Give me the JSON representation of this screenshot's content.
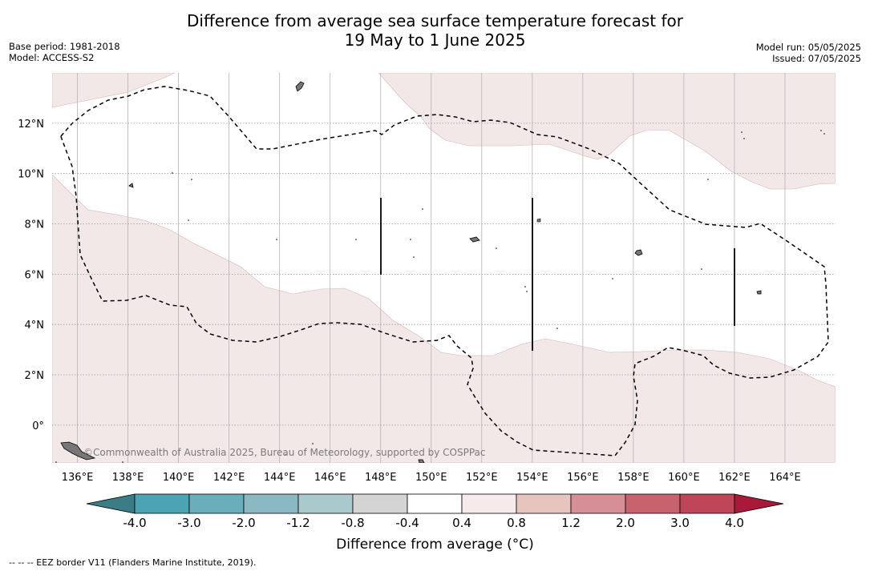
{
  "title_line1": "Difference from average sea surface temperature forecast for",
  "title_line2": "19 May to 1 June 2025",
  "base_period": "Base period: 1981-2018",
  "model": "Model: ACCESS-S2",
  "model_run": "Model run: 05/05/2025",
  "issued": "Issued: 07/05/2025",
  "copyright": "©Commonwealth of Australia 2025, Bureau of Meteorology, supported by COSPPac",
  "eez_note": "--  --  -- EEZ border V11 (Flanders Marine Institute, 2019).",
  "colorbar_title": "Difference from average (°C)",
  "colorbar_ticks": [
    "-4.0",
    "-3.0",
    "-2.0",
    "-1.2",
    "-0.8",
    "-0.4",
    "0.4",
    "0.8",
    "1.2",
    "2.0",
    "3.0",
    "4.0"
  ],
  "colorbar_colors": [
    "#4ba3b3",
    "#6aadbb",
    "#8bb9c3",
    "#a9c9cc",
    "#d4d4d4",
    "#ffffff",
    "#f6ebea",
    "#e7c4bd",
    "#d68f96",
    "#c8636e",
    "#bd4758"
  ],
  "colorbar_extend_colors": {
    "low": "#3b7d86",
    "high": "#a8193a"
  },
  "map_extent": {
    "lon_min": 135,
    "lon_max": 166,
    "lat_min": -1.5,
    "lat_max": 14
  },
  "lon_ticks": [
    "136°E",
    "138°E",
    "140°E",
    "142°E",
    "144°E",
    "146°E",
    "148°E",
    "150°E",
    "152°E",
    "154°E",
    "156°E",
    "158°E",
    "160°E",
    "162°E",
    "164°E"
  ],
  "lat_ticks": [
    "12°N",
    "10°N",
    "8°N",
    "6°N",
    "4°N",
    "2°N",
    "0°"
  ]
}
